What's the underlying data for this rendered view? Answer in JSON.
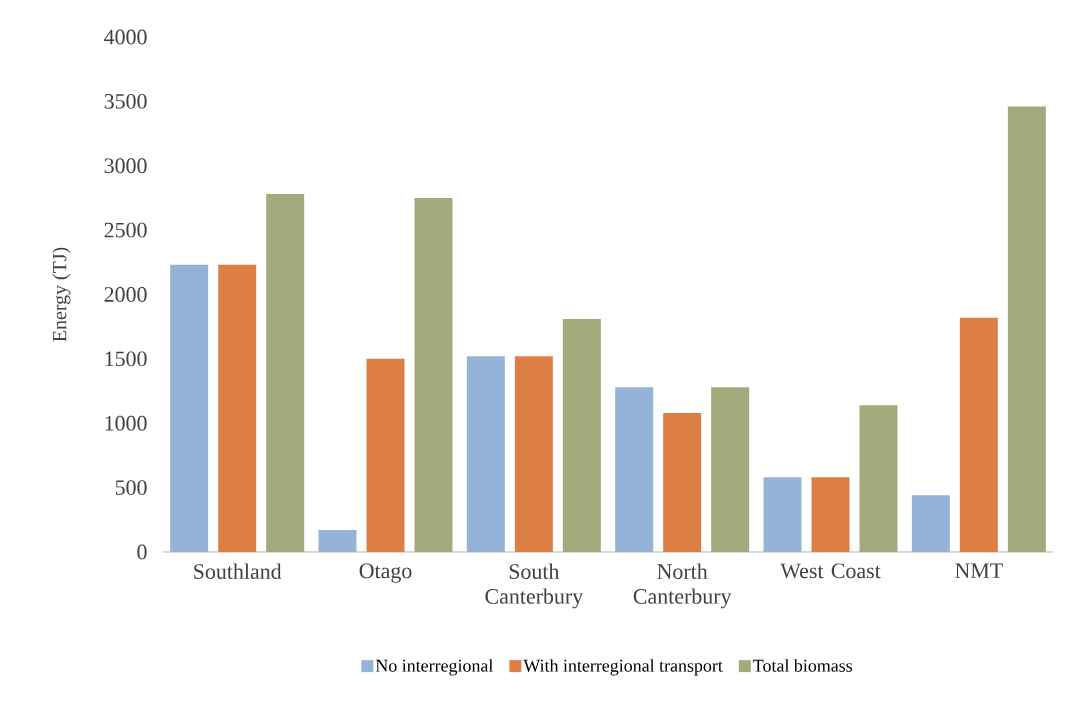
{
  "chart_data": {
    "type": "bar",
    "ylabel": "Energy (TJ)",
    "categories": [
      "Southland",
      "Otago",
      "South Canterbury",
      "North Canterbury",
      "West Coast",
      "NMT"
    ],
    "series": [
      {
        "name": "No interregional",
        "color": "#95b3d7",
        "values": [
          2230,
          170,
          1520,
          1280,
          580,
          440
        ]
      },
      {
        "name": "With interregional transport",
        "color": "#dd7e44",
        "values": [
          2230,
          1500,
          1520,
          1080,
          580,
          1820
        ]
      },
      {
        "name": "Total biomass",
        "color": "#a4aa7c",
        "values": [
          2780,
          2750,
          1810,
          1280,
          1140,
          3460
        ]
      }
    ],
    "ylim": [
      0,
      4000
    ],
    "yticks": [
      0,
      500,
      1000,
      1500,
      2000,
      2500,
      3000,
      3500,
      4000
    ],
    "grid": false,
    "legend": "bottom"
  }
}
